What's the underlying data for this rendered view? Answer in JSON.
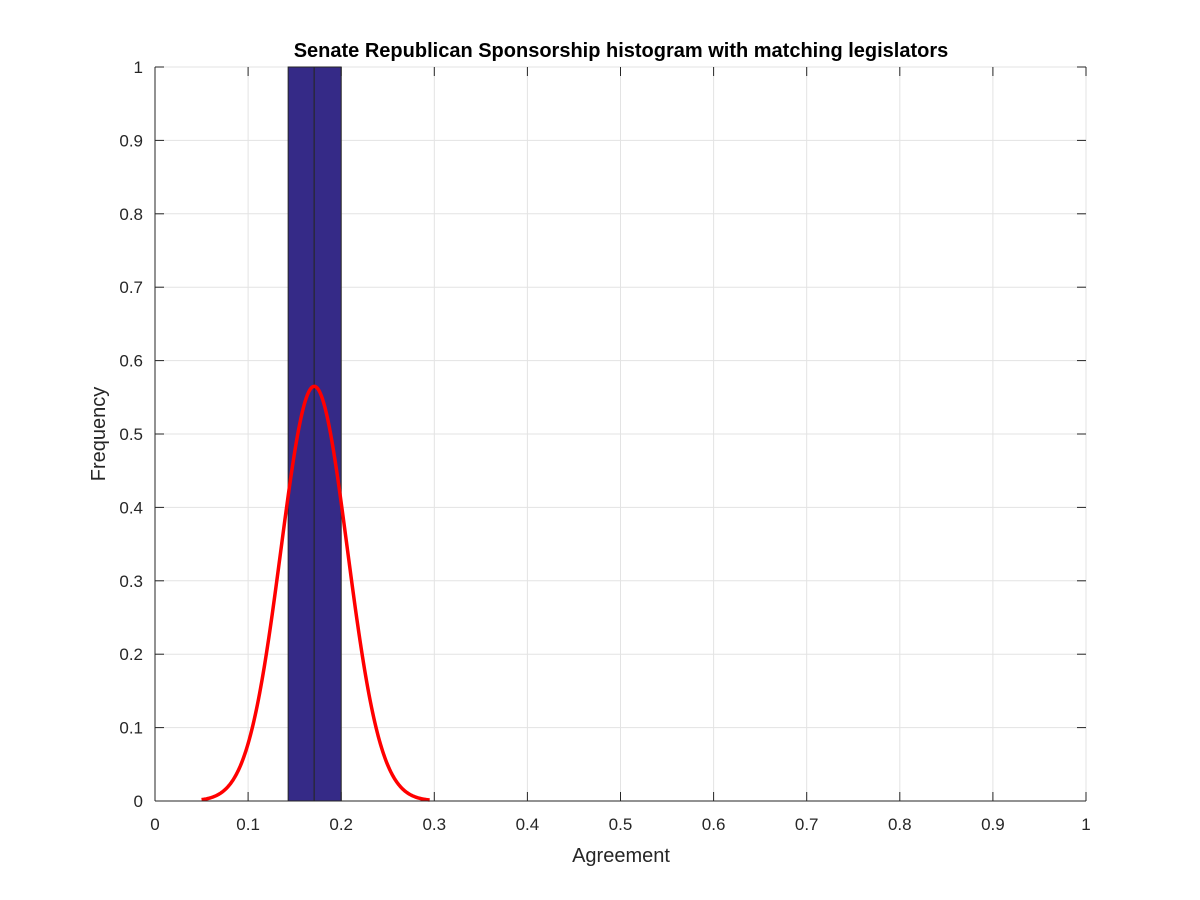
{
  "chart_data": {
    "type": "bar",
    "title": "Senate Republican Sponsorship histogram with matching legislators",
    "xlabel": "Agreement",
    "ylabel": "Frequency",
    "xlim": [
      0,
      1
    ],
    "ylim": [
      0,
      1
    ],
    "xticks": [
      0,
      0.1,
      0.2,
      0.3,
      0.4,
      0.5,
      0.6,
      0.7,
      0.8,
      0.9,
      1
    ],
    "yticks": [
      0,
      0.1,
      0.2,
      0.3,
      0.4,
      0.5,
      0.6,
      0.7,
      0.8,
      0.9,
      1
    ],
    "xtick_labels": [
      "0",
      "0.1",
      "0.2",
      "0.3",
      "0.4",
      "0.5",
      "0.6",
      "0.7",
      "0.8",
      "0.9",
      "1"
    ],
    "ytick_labels": [
      "0",
      "0.1",
      "0.2",
      "0.3",
      "0.4",
      "0.5",
      "0.6",
      "0.7",
      "0.8",
      "0.9",
      "1"
    ],
    "grid": true,
    "bars": [
      {
        "x_start": 0.143,
        "x_end": 0.171,
        "value": 1
      },
      {
        "x_start": 0.171,
        "x_end": 0.2,
        "value": 1
      }
    ],
    "curve": {
      "type": "normal",
      "mean": 0.171,
      "std": 0.0357,
      "peak": 0.565,
      "x_range": [
        0.05,
        0.295
      ]
    },
    "colors": {
      "bar_fill": "#352a87",
      "bar_edge": "#262626",
      "curve": "#ff0000",
      "grid": "#e3e3e3",
      "axis": "#262626"
    }
  }
}
